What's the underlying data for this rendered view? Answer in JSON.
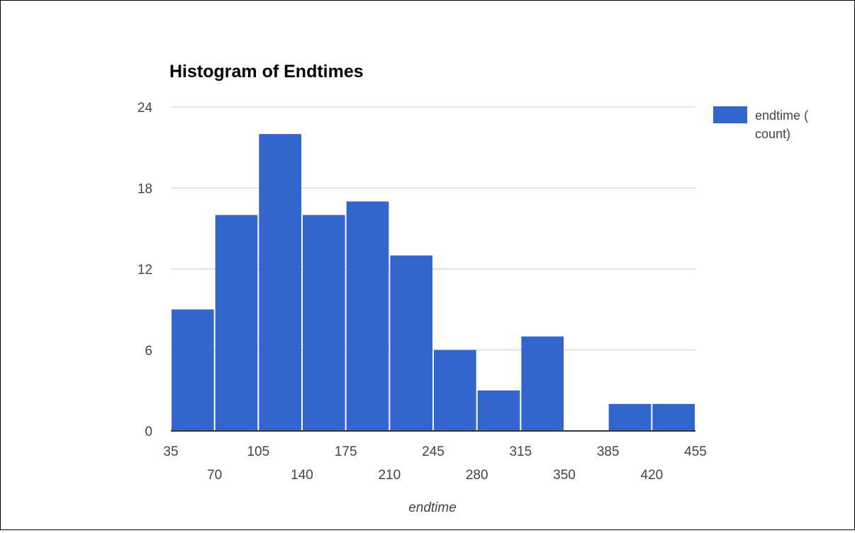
{
  "chart_data": {
    "type": "bar",
    "title": "Histogram of Endtimes",
    "xlabel": "endtime",
    "ylabel": "",
    "bin_edges": [
      35,
      70,
      105,
      140,
      175,
      210,
      245,
      280,
      315,
      350,
      385,
      420,
      455
    ],
    "x_tick_labels": [
      "35",
      "70",
      "105",
      "140",
      "175",
      "210",
      "245",
      "280",
      "315",
      "350",
      "385",
      "420",
      "455"
    ],
    "series": [
      {
        "name": "endtime ( count)",
        "values": [
          9,
          16,
          22,
          16,
          17,
          13,
          6,
          3,
          7,
          0,
          2,
          2
        ]
      }
    ],
    "y_ticks": [
      "0",
      "6",
      "12",
      "18",
      "24"
    ],
    "xlim": [
      35,
      455
    ],
    "ylim": [
      0,
      24
    ],
    "grid": true,
    "legend_position": "right",
    "colors": {
      "bar": "#3366cc",
      "gridline": "#cccccc",
      "axis": "#333333",
      "text": "#444444"
    }
  }
}
